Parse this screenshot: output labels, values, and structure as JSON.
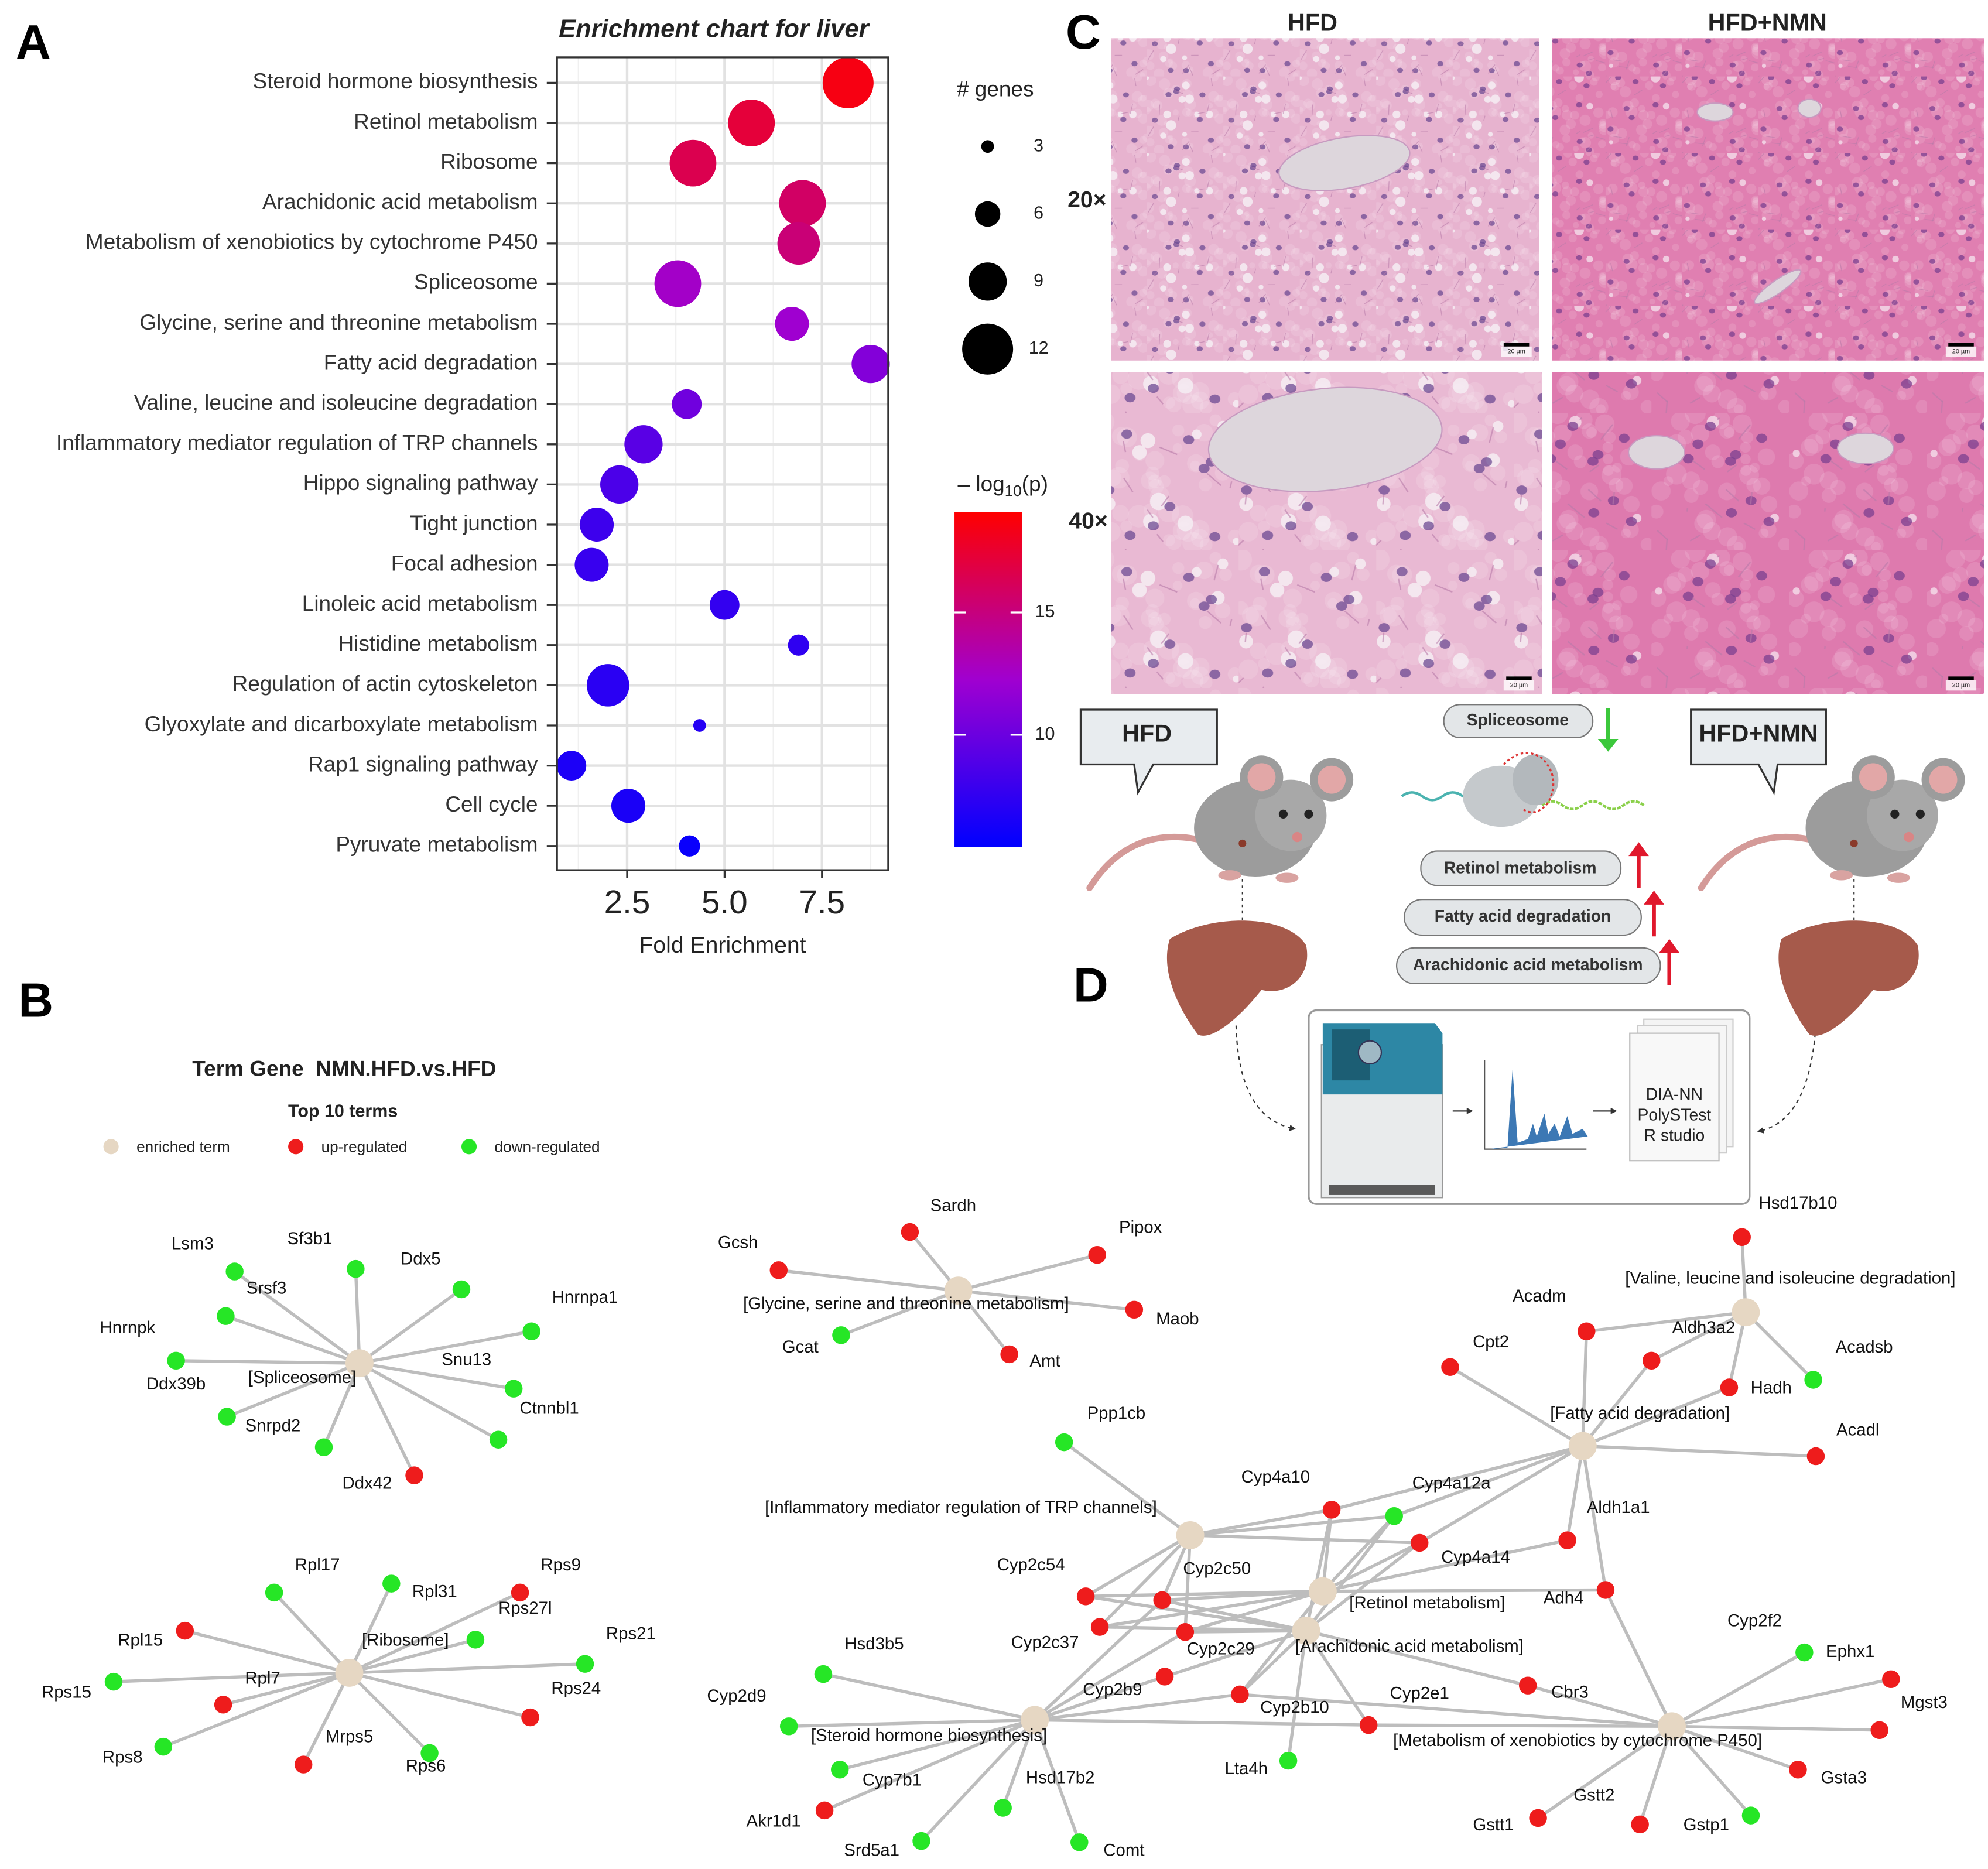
{
  "panels": [
    "A",
    "B",
    "C",
    "D"
  ],
  "chart_data": {
    "type": "scatter",
    "title": "Enrichment chart for liver",
    "x_label": "Fold Enrichment",
    "categories": [
      "Steroid hormone biosynthesis",
      "Retinol metabolism",
      "Ribosome",
      "Arachidonic acid metabolism",
      "Metabolism of xenobiotics by cytochrome P450",
      "Spliceosome",
      "Glycine, serine and threonine metabolism",
      "Fatty acid degradation",
      "Valine, leucine and isoleucine degradation",
      "Inflammatory mediator regulation of TRP channels",
      "Hippo signaling pathway",
      "Tight junction",
      "Focal adhesion",
      "Linoleic acid metabolism",
      "Histidine metabolism",
      "Regulation of actin cytoskeleton",
      "Glyoxylate and dicarboxylate metabolism",
      "Rap1 signaling pathway",
      "Cell cycle",
      "Pyruvate metabolism"
    ],
    "x": [
      8.17,
      5.69,
      4.19,
      7.0,
      6.9,
      3.8,
      6.73,
      8.75,
      4.03,
      2.92,
      2.3,
      1.72,
      1.59,
      5.0,
      6.9,
      2.01,
      4.36,
      1.07,
      2.53,
      4.1
    ],
    "sizes": [
      12,
      11,
      11,
      11,
      10,
      11,
      8,
      9,
      7,
      9,
      9,
      8,
      8,
      7,
      5,
      10,
      3,
      7,
      8,
      5
    ],
    "color_values": [
      18.5,
      17.2,
      16.5,
      15.8,
      15.2,
      12.5,
      12.2,
      11,
      10.2,
      9.2,
      8.6,
      8,
      7.8,
      7.6,
      7.4,
      7.2,
      7,
      6.6,
      6.5,
      5.8
    ],
    "xlim": [
      0.7,
      9.2
    ],
    "xticks": [
      2.5,
      {
        "value": 5,
        "label": "5.0"
      },
      7.5
    ],
    "minor_xticks": [
      1.25,
      3.75,
      6.25,
      8.75
    ],
    "grid": true,
    "size_legend": {
      "title": "# genes",
      "values": [
        3,
        6,
        9,
        12
      ]
    },
    "color_legend": {
      "prefix": "– log",
      "sub": "10",
      "suffix": "(p)",
      "lim": [
        5.4,
        19.1
      ],
      "ticks": [
        10,
        15
      ],
      "colors": [
        "#0000ff",
        "#a000d0",
        "#ff0000"
      ]
    }
  },
  "network": {
    "title": "Term Gene  NMN.HFD.vs.HFD",
    "subtitle": "Top 10 terms",
    "legend": [
      {
        "label": "enriched term",
        "color": "#e6d7c3"
      },
      {
        "label": "up-regulated",
        "color": "#ee1c1c"
      },
      {
        "label": "down-regulated",
        "color": "#26e626"
      }
    ],
    "nodes": [
      {
        "label": "[Spliceosome]",
        "color": "#e6d7c3"
      },
      {
        "label": "Lsm3",
        "color": "#26e626"
      },
      {
        "label": "Sf3b1",
        "color": "#26e626"
      },
      {
        "label": "Srsf3",
        "color": "#26e626"
      },
      {
        "label": "Ddx5",
        "color": "#26e626"
      },
      {
        "label": "Hnrnpa1",
        "color": "#26e626"
      },
      {
        "label": "Hnrnpk",
        "color": "#26e626"
      },
      {
        "label": "Ddx39b",
        "color": "#26e626"
      },
      {
        "label": "Snu13",
        "color": "#26e626"
      },
      {
        "label": "Ctnnbl1",
        "color": "#26e626"
      },
      {
        "label": "Snrpd2",
        "color": "#26e626"
      },
      {
        "label": "Ddx42",
        "color": "#ee1c1c"
      },
      {
        "label": "[Ribosome]",
        "color": "#e6d7c3"
      },
      {
        "label": "Rpl17",
        "color": "#26e626"
      },
      {
        "label": "Rpl31",
        "color": "#26e626"
      },
      {
        "label": "Rps9",
        "color": "#ee1c1c"
      },
      {
        "label": "Rps27l",
        "color": "#26e626"
      },
      {
        "label": "Rpl15",
        "color": "#ee1c1c"
      },
      {
        "label": "Rps21",
        "color": "#26e626"
      },
      {
        "label": "Rpl7",
        "color": "#ee1c1c"
      },
      {
        "label": "Rps15",
        "color": "#26e626"
      },
      {
        "label": "Rps24",
        "color": "#ee1c1c"
      },
      {
        "label": "Rps8",
        "color": "#26e626"
      },
      {
        "label": "Mrps5",
        "color": "#ee1c1c"
      },
      {
        "label": "Rps6",
        "color": "#26e626"
      },
      {
        "label": "[Glycine, serine and threonine metabolism]",
        "color": "#e6d7c3"
      },
      {
        "label": "Sardh",
        "color": "#ee1c1c"
      },
      {
        "label": "Pipox",
        "color": "#ee1c1c"
      },
      {
        "label": "Gcsh",
        "color": "#ee1c1c"
      },
      {
        "label": "Maob",
        "color": "#ee1c1c"
      },
      {
        "label": "Gcat",
        "color": "#26e626"
      },
      {
        "label": "Amt",
        "color": "#ee1c1c"
      },
      {
        "label": "[Valine, leucine and isoleucine degradation]",
        "color": "#e6d7c3"
      },
      {
        "label": "[Fatty acid degradation]",
        "color": "#e6d7c3"
      },
      {
        "label": "[Inflammatory mediator regulation of TRP channels]",
        "color": "#e6d7c3"
      },
      {
        "label": "[Retinol metabolism]",
        "color": "#e6d7c3"
      },
      {
        "label": "[Arachidonic acid metabolism]",
        "color": "#e6d7c3"
      },
      {
        "label": "[Steroid hormone biosynthesis]",
        "color": "#e6d7c3"
      },
      {
        "label": "[Metabolism of xenobiotics by cytochrome P450]",
        "color": "#e6d7c3"
      },
      {
        "label": "Hsd17b10",
        "color": "#ee1c1c"
      },
      {
        "label": "Acadm",
        "color": "#ee1c1c"
      },
      {
        "label": "Aldh3a2",
        "color": "#ee1c1c"
      },
      {
        "label": "Cpt2",
        "color": "#ee1c1c"
      },
      {
        "label": "Acadsb",
        "color": "#26e626"
      },
      {
        "label": "Hadh",
        "color": "#ee1c1c"
      },
      {
        "label": "Acadl",
        "color": "#ee1c1c"
      },
      {
        "label": "Ppp1cb",
        "color": "#26e626"
      },
      {
        "label": "Cyp4a10",
        "color": "#ee1c1c"
      },
      {
        "label": "Cyp4a12a",
        "color": "#26e626"
      },
      {
        "label": "Aldh1a1",
        "color": "#ee1c1c"
      },
      {
        "label": "Cyp4a14",
        "color": "#ee1c1c"
      },
      {
        "label": "Cyp2c50",
        "color": "#ee1c1c"
      },
      {
        "label": "Cyp2c54",
        "color": "#ee1c1c"
      },
      {
        "label": "Adh4",
        "color": "#ee1c1c"
      },
      {
        "label": "Cyp2c37",
        "color": "#ee1c1c"
      },
      {
        "label": "Cyp2c29",
        "color": "#ee1c1c"
      },
      {
        "label": "Cyp2b9",
        "color": "#ee1c1c"
      },
      {
        "label": "Hsd3b5",
        "color": "#26e626"
      },
      {
        "label": "Cyp2b10",
        "color": "#ee1c1c"
      },
      {
        "label": "Cyp2e1",
        "color": "#ee1c1c"
      },
      {
        "label": "Cbr3",
        "color": "#ee1c1c"
      },
      {
        "label": "Cyp2f2",
        "color": "#26e626"
      },
      {
        "label": "Ephx1",
        "color": "#ee1c1c"
      },
      {
        "label": "Mgst3",
        "color": "#ee1c1c"
      },
      {
        "label": "Cyp2d9",
        "color": "#26e626"
      },
      {
        "label": "Lta4h",
        "color": "#26e626"
      },
      {
        "label": "Cyp7b1",
        "color": "#26e626"
      },
      {
        "label": "Gsta3",
        "color": "#ee1c1c"
      },
      {
        "label": "Hsd17b2",
        "color": "#26e626"
      },
      {
        "label": "Akr1d1",
        "color": "#ee1c1c"
      },
      {
        "label": "Gstt2",
        "color": "#ee1c1c"
      },
      {
        "label": "Gstt1",
        "color": "#ee1c1c"
      },
      {
        "label": "Gstp1",
        "color": "#26e626"
      },
      {
        "label": "Srd5a1",
        "color": "#26e626"
      },
      {
        "label": "Comt",
        "color": "#26e626"
      }
    ],
    "adjacency": [
      [
        0,
        [
          1,
          2,
          3,
          4,
          5,
          6,
          7,
          8,
          9,
          10,
          11
        ]
      ],
      [
        12,
        [
          13,
          14,
          15,
          16,
          17,
          18,
          19,
          20,
          21,
          22,
          23,
          24
        ]
      ],
      [
        25,
        [
          26,
          27,
          28,
          29,
          30,
          31
        ]
      ],
      [
        32,
        [
          39,
          40,
          41,
          43,
          44
        ]
      ],
      [
        33,
        [
          40,
          41,
          42,
          44,
          45,
          47,
          48,
          50,
          53,
          49
        ]
      ],
      [
        34,
        [
          46,
          47,
          48,
          50,
          51,
          52,
          54,
          55
        ]
      ],
      [
        35,
        [
          47,
          48,
          50,
          51,
          52,
          54,
          55,
          58,
          49,
          53
        ]
      ],
      [
        36,
        [
          47,
          48,
          50,
          51,
          52,
          54,
          55,
          56,
          58,
          59,
          60,
          65
        ]
      ],
      [
        37,
        [
          57,
          64,
          66,
          69,
          73,
          68,
          74,
          56,
          58,
          51,
          55,
          59
        ]
      ],
      [
        38,
        [
          59,
          60,
          53,
          61,
          62,
          63,
          67,
          70,
          71,
          72,
          58
        ]
      ]
    ]
  },
  "histology": {
    "columns": [
      "HFD",
      "HFD+NMN"
    ],
    "rows": [
      "20×",
      "40×"
    ],
    "scale_bar": "20 µm"
  },
  "schematic": {
    "groups": [
      "HFD",
      "HFD+NMN"
    ],
    "down": [
      "Spliceosome"
    ],
    "up": [
      "Retinol metabolism",
      "Fatty acid degradation",
      "Arachidonic acid metabolism"
    ],
    "software": [
      "DIA-NN",
      "PolySTest",
      "R studio"
    ]
  }
}
